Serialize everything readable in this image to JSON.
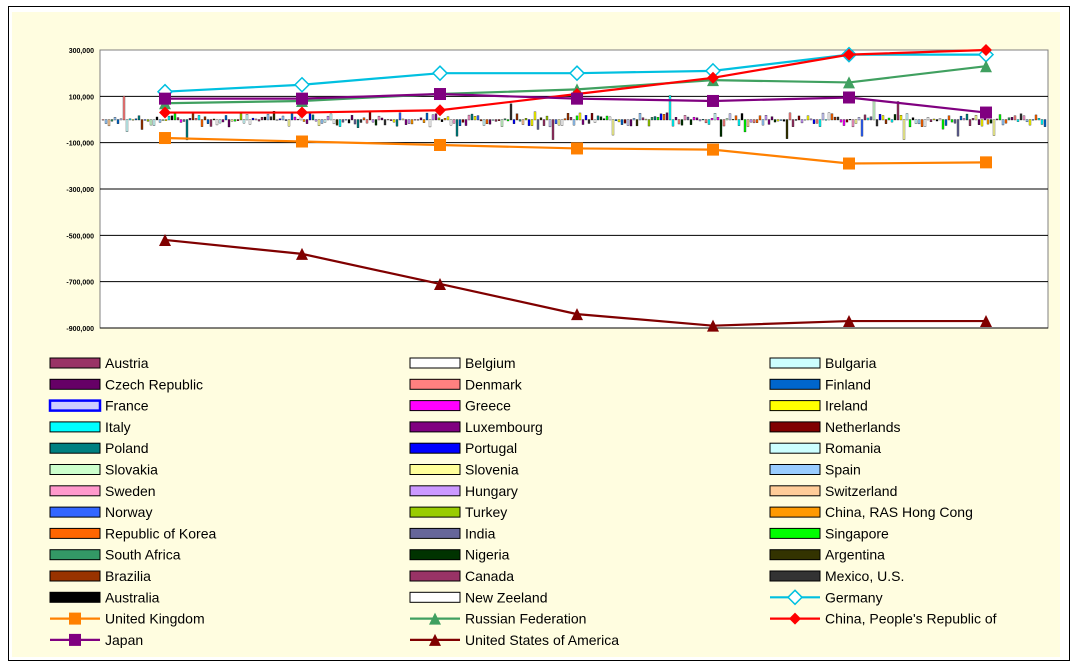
{
  "chart_data": {
    "type": "line",
    "title": "",
    "xlabel": "",
    "ylabel": "",
    "ylim": [
      -900000,
      300000
    ],
    "y_ticks": [
      300000,
      100000,
      -100000,
      -300000,
      -500000,
      -700000,
      -900000
    ],
    "y_tick_labels": [
      "300,000",
      "100,000",
      "-100,000",
      "-300,000",
      "-500,000",
      "-700,000",
      "-900,000"
    ],
    "grid": true,
    "legend_placement": "bottom",
    "point_count": 7,
    "line_series": [
      {
        "name": "Germany",
        "color": "#00c0e0",
        "marker": "diamond-open",
        "values": [
          120000,
          150000,
          200000,
          200000,
          210000,
          280000,
          280000
        ]
      },
      {
        "name": "United Kingdom",
        "color": "#ff8000",
        "marker": "square",
        "values": [
          -80000,
          -95000,
          -110000,
          -125000,
          -130000,
          -190000,
          -185000
        ]
      },
      {
        "name": "Russian Federation",
        "color": "#40a060",
        "marker": "triangle",
        "values": [
          70000,
          80000,
          110000,
          130000,
          170000,
          160000,
          230000
        ]
      },
      {
        "name": "China, People's Republic of",
        "color": "#ff0000",
        "marker": "diamond",
        "values": [
          30000,
          30000,
          40000,
          110000,
          180000,
          280000,
          300000
        ]
      },
      {
        "name": "Japan",
        "color": "#800080",
        "marker": "square",
        "values": [
          90000,
          90000,
          110000,
          90000,
          80000,
          95000,
          30000
        ]
      },
      {
        "name": "United States of America",
        "color": "#800000",
        "marker": "triangle",
        "values": [
          -520000,
          -580000,
          -710000,
          -840000,
          -890000,
          -870000,
          -870000
        ]
      }
    ],
    "legend": [
      {
        "name": "Austria",
        "color": "#993366",
        "kind": "bar"
      },
      {
        "name": "Belgium",
        "color": "#ffffff",
        "kind": "bar"
      },
      {
        "name": "Bulgaria",
        "color": "#ccffff",
        "kind": "bar"
      },
      {
        "name": "Czech Republic",
        "color": "#660066",
        "kind": "bar"
      },
      {
        "name": "Denmark",
        "color": "#ff8080",
        "kind": "bar"
      },
      {
        "name": "Finland",
        "color": "#0066cc",
        "kind": "bar"
      },
      {
        "name": "France",
        "color": "#ccccff",
        "kind": "bar-blue"
      },
      {
        "name": "Greece",
        "color": "#ff00ff",
        "kind": "bar"
      },
      {
        "name": "Ireland",
        "color": "#ffff00",
        "kind": "bar"
      },
      {
        "name": "Italy",
        "color": "#00ffff",
        "kind": "bar"
      },
      {
        "name": "Luxembourg",
        "color": "#800080",
        "kind": "bar"
      },
      {
        "name": "Netherlands",
        "color": "#800000",
        "kind": "bar"
      },
      {
        "name": "Poland",
        "color": "#008080",
        "kind": "bar"
      },
      {
        "name": "Portugal",
        "color": "#0000ff",
        "kind": "bar"
      },
      {
        "name": "Romania",
        "color": "#ccffff",
        "kind": "bar"
      },
      {
        "name": "Slovakia",
        "color": "#ccffcc",
        "kind": "bar"
      },
      {
        "name": "Slovenia",
        "color": "#ffff99",
        "kind": "bar"
      },
      {
        "name": "Spain",
        "color": "#99ccff",
        "kind": "bar"
      },
      {
        "name": "Sweden",
        "color": "#ff99cc",
        "kind": "bar"
      },
      {
        "name": "Hungary",
        "color": "#cc99ff",
        "kind": "bar"
      },
      {
        "name": "Switzerland",
        "color": "#ffcc99",
        "kind": "bar"
      },
      {
        "name": "Norway",
        "color": "#3366ff",
        "kind": "bar"
      },
      {
        "name": "Turkey",
        "color": "#99cc00",
        "kind": "bar"
      },
      {
        "name": "China, RAS Hong Cong",
        "color": "#ff9900",
        "kind": "bar"
      },
      {
        "name": "Republic of Korea",
        "color": "#ff6600",
        "kind": "bar"
      },
      {
        "name": "India",
        "color": "#666699",
        "kind": "bar"
      },
      {
        "name": "Singapore",
        "color": "#00ff00",
        "kind": "bar"
      },
      {
        "name": "South Africa",
        "color": "#339966",
        "kind": "bar"
      },
      {
        "name": "Nigeria",
        "color": "#003300",
        "kind": "bar"
      },
      {
        "name": "Argentina",
        "color": "#333300",
        "kind": "bar"
      },
      {
        "name": "Brazilia",
        "color": "#993300",
        "kind": "bar"
      },
      {
        "name": "Canada",
        "color": "#993366",
        "kind": "bar"
      },
      {
        "name": "Mexico, U.S.",
        "color": "#333333",
        "kind": "bar"
      },
      {
        "name": "Australia",
        "color": "#000000",
        "kind": "bar"
      },
      {
        "name": "New Zeeland",
        "color": "#ffffff",
        "kind": "bar"
      },
      {
        "name": "Germany",
        "color": "#00c0e0",
        "kind": "line-diamond-open"
      },
      {
        "name": "United Kingdom",
        "color": "#ff8000",
        "kind": "line-square"
      },
      {
        "name": "Russian Federation",
        "color": "#40a060",
        "kind": "line-triangle"
      },
      {
        "name": "China, People's Republic of",
        "color": "#ff0000",
        "kind": "line-diamond"
      },
      {
        "name": "Japan",
        "color": "#800080",
        "kind": "line-square"
      },
      {
        "name": "United States of America",
        "color": "#800000",
        "kind": "line-triangle"
      }
    ]
  }
}
